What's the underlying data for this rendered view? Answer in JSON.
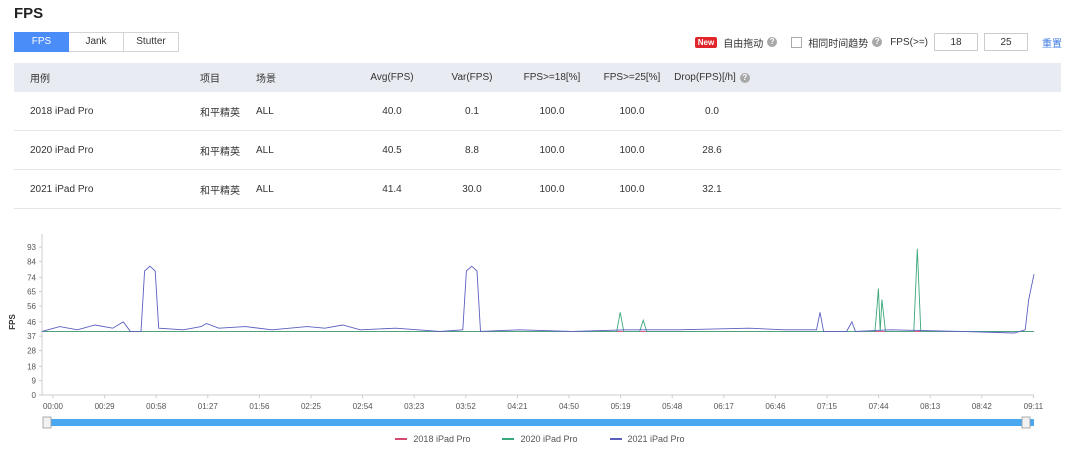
{
  "page": {
    "title": "FPS"
  },
  "tabs": [
    {
      "label": "FPS",
      "active": true
    },
    {
      "label": "Jank",
      "active": false
    },
    {
      "label": "Stutter",
      "active": false
    }
  ],
  "controls": {
    "new_badge": "New",
    "free_drag": "自由拖动",
    "same_time_trend": "相同时间趋势",
    "fps_label": "FPS(>=)",
    "threshold1": "18",
    "threshold2": "25",
    "reset": "重置",
    "help_icon": "?"
  },
  "table": {
    "headers": [
      "用例",
      "项目",
      "场景",
      "Avg(FPS)",
      "Var(FPS)",
      "FPS>=18[%]",
      "FPS>=25[%]",
      "Drop(FPS)[/h]"
    ],
    "rows": [
      [
        "2018 iPad Pro",
        "和平精英",
        "ALL",
        "40.0",
        "0.1",
        "100.0",
        "100.0",
        "0.0"
      ],
      [
        "2020 iPad Pro",
        "和平精英",
        "ALL",
        "40.5",
        "8.8",
        "100.0",
        "100.0",
        "28.6"
      ],
      [
        "2021 iPad Pro",
        "和平精英",
        "ALL",
        "41.4",
        "30.0",
        "100.0",
        "100.0",
        "32.1"
      ]
    ]
  },
  "chart_data": {
    "type": "line",
    "ylabel": "FPS",
    "y_ticks": [
      0,
      9,
      18,
      28,
      37,
      46,
      56,
      65,
      74,
      84,
      93
    ],
    "ylim": [
      0,
      100
    ],
    "x_ticks": [
      "00:00",
      "00:29",
      "00:58",
      "01:27",
      "01:56",
      "02:25",
      "02:54",
      "03:23",
      "03:52",
      "04:21",
      "04:50",
      "05:19",
      "05:48",
      "06:17",
      "06:46",
      "07:15",
      "07:44",
      "08:13",
      "08:42",
      "09:11"
    ],
    "x_range_seconds": [
      0,
      561
    ],
    "series": [
      {
        "name": "2018 iPad Pro",
        "color": "#d24a6e",
        "points": [
          [
            0,
            40
          ],
          [
            561,
            40
          ]
        ]
      },
      {
        "name": "2020 iPad Pro",
        "color": "#3aa87a",
        "points": [
          [
            0,
            40
          ],
          [
            325,
            40
          ],
          [
            327,
            52
          ],
          [
            329,
            40
          ],
          [
            338,
            40
          ],
          [
            340,
            47
          ],
          [
            342,
            40
          ],
          [
            470,
            40
          ],
          [
            472,
            52
          ],
          [
            474,
            40
          ],
          [
            465,
            40
          ],
          [
            470,
            40
          ],
          [
            471,
            40
          ],
          [
            473,
            67
          ],
          [
            475,
            60
          ],
          [
            477,
            40
          ],
          [
            493,
            40
          ],
          [
            495,
            92
          ],
          [
            497,
            40
          ],
          [
            561,
            40
          ]
        ]
      },
      {
        "name": "2021 iPad Pro",
        "color": "#5b5fc0",
        "points": [
          [
            0,
            40
          ],
          [
            10,
            43
          ],
          [
            20,
            41
          ],
          [
            30,
            44
          ],
          [
            40,
            42
          ],
          [
            46,
            46
          ],
          [
            50,
            40
          ],
          [
            56,
            40
          ],
          [
            58,
            78
          ],
          [
            61,
            81
          ],
          [
            64,
            78
          ],
          [
            66,
            42
          ],
          [
            80,
            41
          ],
          [
            90,
            43
          ],
          [
            93,
            45
          ],
          [
            100,
            42
          ],
          [
            115,
            43
          ],
          [
            130,
            41
          ],
          [
            150,
            43
          ],
          [
            160,
            42
          ],
          [
            170,
            44
          ],
          [
            180,
            41
          ],
          [
            200,
            42
          ],
          [
            225,
            40
          ],
          [
            238,
            41
          ],
          [
            240,
            78
          ],
          [
            243,
            81
          ],
          [
            246,
            78
          ],
          [
            248,
            40
          ],
          [
            270,
            41
          ],
          [
            300,
            40
          ],
          [
            330,
            41
          ],
          [
            360,
            41
          ],
          [
            400,
            42
          ],
          [
            420,
            41
          ],
          [
            438,
            41
          ],
          [
            440,
            52
          ],
          [
            442,
            40
          ],
          [
            455,
            40
          ],
          [
            458,
            46
          ],
          [
            460,
            40
          ],
          [
            480,
            41
          ],
          [
            520,
            40
          ],
          [
            550,
            39
          ],
          [
            556,
            41
          ],
          [
            558,
            60
          ],
          [
            561,
            76
          ]
        ]
      }
    ],
    "legend_position": "bottom"
  }
}
